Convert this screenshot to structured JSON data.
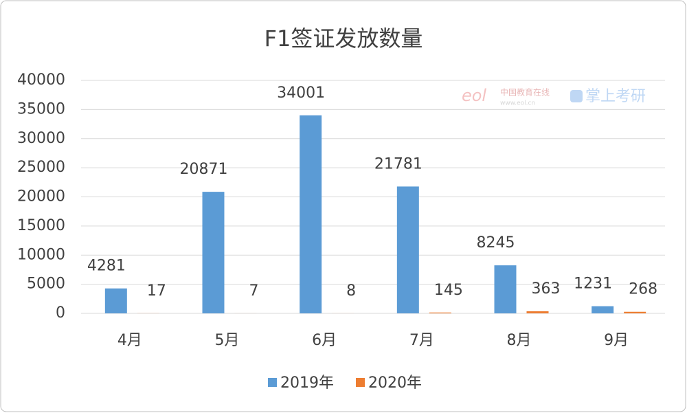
{
  "chart_data": {
    "type": "bar",
    "title": "F1签证发放数量",
    "categories": [
      "4月",
      "5月",
      "6月",
      "7月",
      "8月",
      "9月"
    ],
    "series": [
      {
        "name": "2019年",
        "color": "#5b9bd5",
        "values": [
          4281,
          20871,
          34001,
          21781,
          8245,
          1231
        ]
      },
      {
        "name": "2020年",
        "color": "#ed7d31",
        "values": [
          17,
          7,
          8,
          145,
          363,
          268
        ]
      }
    ],
    "ylim": [
      0,
      40000
    ],
    "yticks": [
      0,
      5000,
      10000,
      15000,
      20000,
      25000,
      30000,
      35000,
      40000
    ],
    "grid": true,
    "legend": "bottom",
    "watermark": {
      "logo": "eol",
      "name": "中国教育在线",
      "url": "www.eol.cn",
      "brand": "掌上考研"
    }
  }
}
